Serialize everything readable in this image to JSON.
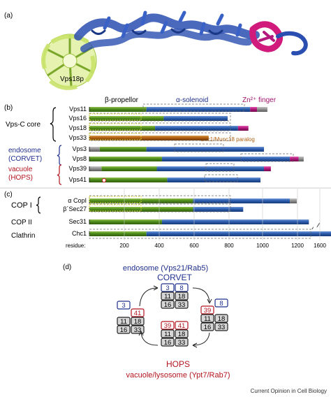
{
  "panel_labels": {
    "a": "(a)",
    "b": "(b)",
    "c": "(c)",
    "d": "(d)"
  },
  "structure": {
    "protein_label": "Vps18p",
    "domain_labels": {
      "propeller": "β-propellor",
      "solenoid": "α-solenoid",
      "zinc": "Zn²⁺ finger"
    }
  },
  "colors": {
    "propeller_green": "#4e8a1c",
    "solenoid_blue": "#2b5cad",
    "zinc_magenta": "#b3187c",
    "linker_grey": "#8c8c8c",
    "sec1_orange": "#b05f10",
    "corvet_blue": "#1f2f8c",
    "hops_red": "#b3151f"
  },
  "panel_b": {
    "vps_c_core": "Vps-C core",
    "endosome": "endosome",
    "corvet": "(CORVET)",
    "vacuole": "vacuole",
    "hops": "(HOPS)",
    "sec1_note": "Sec1/Munc18 paralog",
    "rows": [
      {
        "name": "Vps11",
        "length": 1030,
        "segments": [
          [
            "g",
            0,
            330
          ],
          [
            "b",
            330,
            930
          ],
          [
            "m",
            930,
            970
          ],
          [
            "x",
            970,
            1030
          ]
        ]
      },
      {
        "name": "Vps16",
        "length": 800,
        "segments": [
          [
            "g",
            0,
            430
          ],
          [
            "b",
            430,
            800
          ]
        ]
      },
      {
        "name": "Vps18",
        "length": 920,
        "segments": [
          [
            "g",
            0,
            380
          ],
          [
            "b",
            380,
            860
          ],
          [
            "m",
            860,
            920
          ]
        ]
      },
      {
        "name": "Vps33",
        "length": 690,
        "segments": [
          [
            "o",
            0,
            690
          ]
        ]
      },
      {
        "name": "Vps3",
        "length": 1010,
        "segments": [
          [
            "x",
            0,
            60
          ],
          [
            "g",
            60,
            330
          ],
          [
            "b",
            330,
            1010
          ]
        ]
      },
      {
        "name": "Vps8",
        "length": 1240,
        "segments": [
          [
            "g",
            0,
            420
          ],
          [
            "b",
            420,
            1160
          ],
          [
            "m",
            1160,
            1210
          ],
          [
            "x",
            1210,
            1240
          ]
        ]
      },
      {
        "name": "Vps39",
        "length": 1050,
        "segments": [
          [
            "x",
            0,
            70
          ],
          [
            "g",
            70,
            390
          ],
          [
            "b",
            390,
            1010
          ],
          [
            "m",
            1010,
            1050
          ]
        ]
      },
      {
        "name": "Vps41",
        "length": 990,
        "segments": [
          [
            "g",
            0,
            450
          ],
          [
            "b",
            450,
            990
          ]
        ]
      }
    ]
  },
  "panel_c": {
    "copi": "COP I",
    "copii": "COP II",
    "clathrin": "Clathrin",
    "rows": [
      {
        "name": "α CopI",
        "length": 1200,
        "segments": [
          [
            "g",
            0,
            600
          ],
          [
            "b",
            600,
            1160
          ],
          [
            "x",
            1160,
            1200
          ]
        ]
      },
      {
        "name": "β´Sec27",
        "length": 890,
        "segments": [
          [
            "g",
            0,
            600
          ],
          [
            "b",
            600,
            890
          ]
        ]
      },
      {
        "name": "Sec31",
        "length": 1270,
        "segments": [
          [
            "g",
            0,
            420
          ],
          [
            "b",
            420,
            1270
          ]
        ]
      },
      {
        "name": "Chc1",
        "length": 1650,
        "segments": [
          [
            "g",
            0,
            330
          ],
          [
            "b",
            330,
            1650
          ]
        ]
      }
    ],
    "axis_label": "residue:",
    "ticks": [
      "200",
      "400",
      "600",
      "800",
      "1000",
      "1200",
      "1600"
    ]
  },
  "panel_d": {
    "title": "endosome (Vps21/Rab5)",
    "corvet": "CORVET",
    "hops": "HOPS",
    "bottom": "vacuole/lysosome (Ypt7/Rab7)",
    "subunits": {
      "s3": "3",
      "s8": "8",
      "s11": "11",
      "s16": "16",
      "s18": "18",
      "s33": "33",
      "s39": "39",
      "s41": "41"
    }
  },
  "credit": "Current Opinion in Cell Biology"
}
